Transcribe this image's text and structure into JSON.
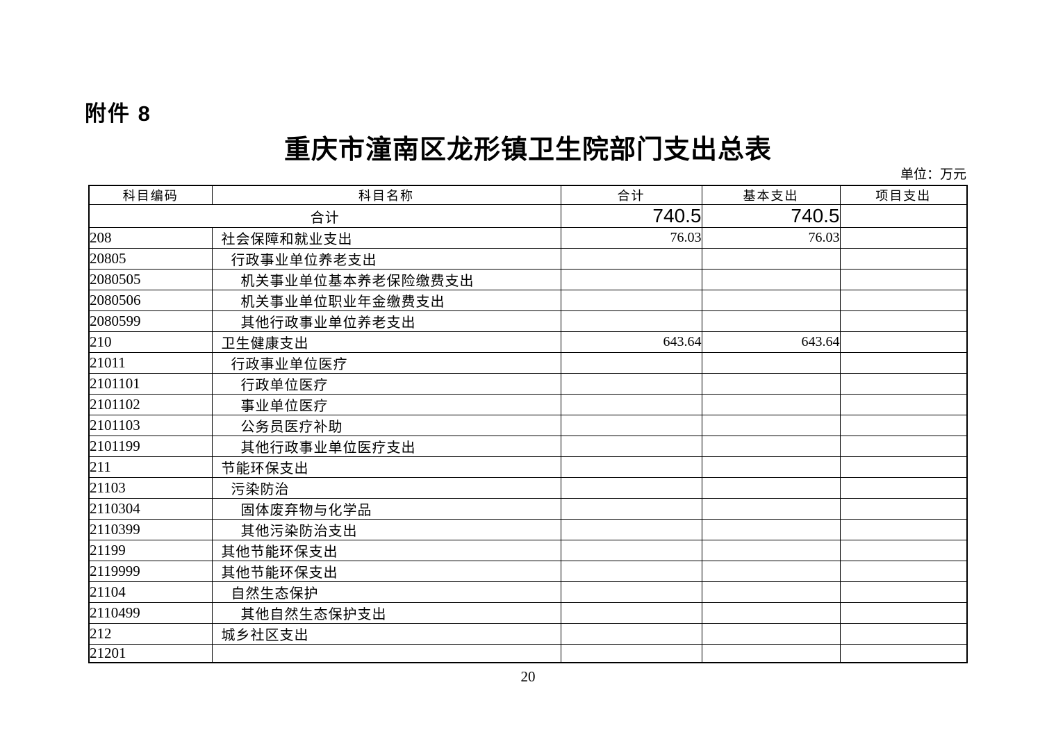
{
  "page": {
    "attachment_label": "附件 8",
    "title": "重庆市潼南区龙形镇卫生院部门支出总表",
    "unit_label": "单位：万元",
    "page_number": "20"
  },
  "table": {
    "columns": [
      "科目编码",
      "科目名称",
      "合计",
      "基本支出",
      "项目支出"
    ],
    "rows": [
      {
        "code": "",
        "name": "合计",
        "total": "740.5",
        "basic": "740.5",
        "project": "",
        "indent": 0,
        "grand_total": true
      },
      {
        "code": "208",
        "name": "社会保障和就业支出",
        "total": "76.03",
        "basic": "76.03",
        "project": "",
        "indent": 0
      },
      {
        "code": "20805",
        "name": "行政事业单位养老支出",
        "total": "",
        "basic": "",
        "project": "",
        "indent": 1
      },
      {
        "code": "2080505",
        "name": "机关事业单位基本养老保险缴费支出",
        "total": "",
        "basic": "",
        "project": "",
        "indent": 2
      },
      {
        "code": "2080506",
        "name": "机关事业单位职业年金缴费支出",
        "total": "",
        "basic": "",
        "project": "",
        "indent": 2
      },
      {
        "code": "2080599",
        "name": "其他行政事业单位养老支出",
        "total": "",
        "basic": "",
        "project": "",
        "indent": 2
      },
      {
        "code": "210",
        "name": "卫生健康支出",
        "total": "643.64",
        "basic": "643.64",
        "project": "",
        "indent": 0
      },
      {
        "code": "21011",
        "name": "行政事业单位医疗",
        "total": "",
        "basic": "",
        "project": "",
        "indent": 1
      },
      {
        "code": "2101101",
        "name": "行政单位医疗",
        "total": "",
        "basic": "",
        "project": "",
        "indent": 2
      },
      {
        "code": "2101102",
        "name": "事业单位医疗",
        "total": "",
        "basic": "",
        "project": "",
        "indent": 2
      },
      {
        "code": "2101103",
        "name": "公务员医疗补助",
        "total": "",
        "basic": "",
        "project": "",
        "indent": 2
      },
      {
        "code": "2101199",
        "name": "其他行政事业单位医疗支出",
        "total": "",
        "basic": "",
        "project": "",
        "indent": 2
      },
      {
        "code": "211",
        "name": "节能环保支出",
        "total": "",
        "basic": "",
        "project": "",
        "indent": 0
      },
      {
        "code": "21103",
        "name": "污染防治",
        "total": "",
        "basic": "",
        "project": "",
        "indent": 1
      },
      {
        "code": "2110304",
        "name": "固体废弃物与化学品",
        "total": "",
        "basic": "",
        "project": "",
        "indent": 2
      },
      {
        "code": "2110399",
        "name": "其他污染防治支出",
        "total": "",
        "basic": "",
        "project": "",
        "indent": 2
      },
      {
        "code": "21199",
        "name": "其他节能环保支出",
        "total": "",
        "basic": "",
        "project": "",
        "indent": 0
      },
      {
        "code": "2119999",
        "name": "其他节能环保支出",
        "total": "",
        "basic": "",
        "project": "",
        "indent": 0
      },
      {
        "code": "21104",
        "name": "自然生态保护",
        "total": "",
        "basic": "",
        "project": "",
        "indent": 1
      },
      {
        "code": "2110499",
        "name": "其他自然生态保护支出",
        "total": "",
        "basic": "",
        "project": "",
        "indent": 2
      },
      {
        "code": "212",
        "name": "城乡社区支出",
        "total": "",
        "basic": "",
        "project": "",
        "indent": 0
      },
      {
        "code": "21201",
        "name": "",
        "total": "",
        "basic": "",
        "project": "",
        "indent": 0
      }
    ]
  }
}
